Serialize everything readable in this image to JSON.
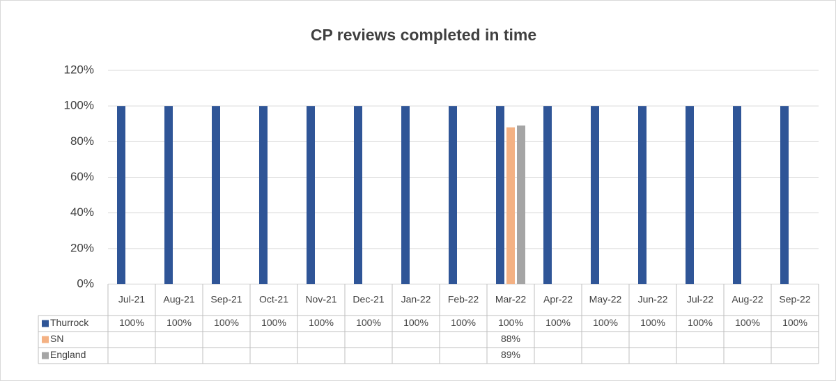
{
  "chart_data": {
    "type": "bar",
    "title": "CP reviews completed in time",
    "categories": [
      "Jul-21",
      "Aug-21",
      "Sep-21",
      "Oct-21",
      "Nov-21",
      "Dec-21",
      "Jan-22",
      "Feb-22",
      "Mar-22",
      "Apr-22",
      "May-22",
      "Jun-22",
      "Jul-22",
      "Aug-22",
      "Sep-22"
    ],
    "series": [
      {
        "name": "Thurrock",
        "color": "#2f5597",
        "values": [
          100,
          100,
          100,
          100,
          100,
          100,
          100,
          100,
          100,
          100,
          100,
          100,
          100,
          100,
          100
        ],
        "value_labels": [
          "100%",
          "100%",
          "100%",
          "100%",
          "100%",
          "100%",
          "100%",
          "100%",
          "100%",
          "100%",
          "100%",
          "100%",
          "100%",
          "100%",
          "100%"
        ]
      },
      {
        "name": "SN",
        "color": "#f4b183",
        "values": [
          null,
          null,
          null,
          null,
          null,
          null,
          null,
          null,
          88,
          null,
          null,
          null,
          null,
          null,
          null
        ],
        "value_labels": [
          null,
          null,
          null,
          null,
          null,
          null,
          null,
          null,
          "88%",
          null,
          null,
          null,
          null,
          null,
          null
        ]
      },
      {
        "name": "England",
        "color": "#a5a5a5",
        "values": [
          null,
          null,
          null,
          null,
          null,
          null,
          null,
          null,
          89,
          null,
          null,
          null,
          null,
          null,
          null
        ],
        "value_labels": [
          null,
          null,
          null,
          null,
          null,
          null,
          null,
          null,
          "89%",
          null,
          null,
          null,
          null,
          null,
          null
        ]
      }
    ],
    "ylim": [
      0,
      120
    ],
    "yticks": [
      {
        "value": 0,
        "label": "0%"
      },
      {
        "value": 20,
        "label": "20%"
      },
      {
        "value": 40,
        "label": "40%"
      },
      {
        "value": 60,
        "label": "60%"
      },
      {
        "value": 80,
        "label": "80%"
      },
      {
        "value": 100,
        "label": "100%"
      },
      {
        "value": 120,
        "label": "120%"
      }
    ],
    "grid": true,
    "legend": "data-table"
  }
}
